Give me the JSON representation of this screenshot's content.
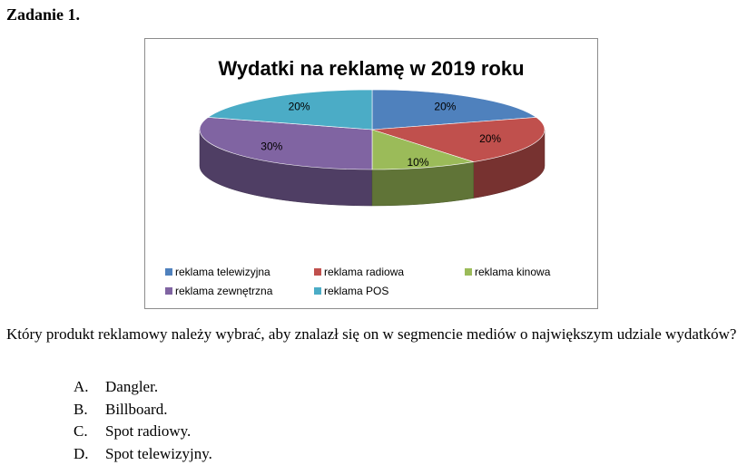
{
  "task": {
    "title": "Zadanie 1."
  },
  "chart_data": {
    "type": "pie",
    "title": "Wydatki na reklamę w 2019 roku",
    "labels": [
      "reklama telewizyjna",
      "reklama radiowa",
      "reklama kinowa",
      "reklama zewnętrzna",
      "reklama POS"
    ],
    "values": [
      20,
      20,
      10,
      30,
      20
    ],
    "value_labels": [
      "20%",
      "20%",
      "10%",
      "30%",
      "20%"
    ],
    "colors": [
      "#4f81bd",
      "#c0504d",
      "#9bbb59",
      "#8064a2",
      "#4bacc6"
    ],
    "style": "3d",
    "legend_position": "bottom"
  },
  "question": {
    "text": "Który produkt reklamowy należy wybrać, aby znalazł się on w segmencie mediów o największym udziale wydatków?"
  },
  "answers": [
    {
      "letter": "A.",
      "text": "Dangler."
    },
    {
      "letter": "B.",
      "text": "Billboard."
    },
    {
      "letter": "C.",
      "text": "Spot radiowy."
    },
    {
      "letter": "D.",
      "text": "Spot telewizyjny."
    }
  ]
}
